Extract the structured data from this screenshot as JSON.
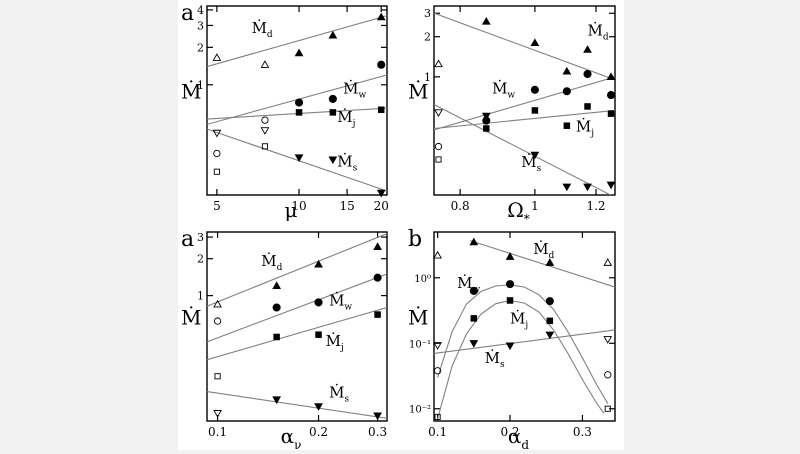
{
  "figure": {
    "background": "#f2f2f2",
    "panel_background": "#ffffff",
    "ink": "#000000",
    "fit_line_color": "#808080"
  },
  "chart_data": [
    {
      "id": "p1",
      "type": "scatter",
      "panel_letter": "a",
      "xlabel": "μ",
      "ylabel": "Ṁ",
      "xscale": "log",
      "yscale": "log",
      "xlim": [
        4.6,
        21
      ],
      "ylim": [
        0.13,
        4.3
      ],
      "xticks": [
        5,
        10,
        15,
        20
      ],
      "xticklabels": [
        "5",
        "10",
        "15",
        "20"
      ],
      "yticks": [
        1,
        2,
        3,
        4
      ],
      "yticklabels": [
        "1",
        "2",
        "3",
        "4"
      ],
      "series": [
        {
          "name": "Ṁd",
          "marker": "triangle-up",
          "points": [
            [
              5,
              1.65,
              "open"
            ],
            [
              7.5,
              1.45,
              "open"
            ],
            [
              10,
              1.8,
              "filled"
            ],
            [
              13.3,
              2.5,
              "filled"
            ],
            [
              20,
              3.5,
              "filled"
            ]
          ],
          "fit": [
            [
              4.6,
              1.4
            ],
            [
              21,
              3.6
            ]
          ]
        },
        {
          "name": "Ṁw",
          "marker": "circle",
          "points": [
            [
              5,
              0.28,
              "open"
            ],
            [
              7.5,
              0.52,
              "open"
            ],
            [
              10,
              0.72,
              "filled"
            ],
            [
              13.3,
              0.77,
              "filled"
            ],
            [
              20,
              1.45,
              "filled"
            ]
          ],
          "fit": [
            [
              4.6,
              0.48
            ],
            [
              21,
              1.2
            ]
          ]
        },
        {
          "name": "Ṁj",
          "marker": "square",
          "points": [
            [
              5,
              0.2,
              "open"
            ],
            [
              7.5,
              0.32,
              "open"
            ],
            [
              10,
              0.6,
              "filled"
            ],
            [
              13.3,
              0.6,
              "filled"
            ],
            [
              20,
              0.63,
              "filled"
            ]
          ],
          "fit": [
            [
              4.6,
              0.53
            ],
            [
              21,
              0.65
            ]
          ]
        },
        {
          "name": "Ṁs",
          "marker": "triangle-down",
          "points": [
            [
              5,
              0.41,
              "open"
            ],
            [
              7.5,
              0.43,
              "open"
            ],
            [
              10,
              0.26,
              "filled"
            ],
            [
              13.3,
              0.25,
              "filled"
            ],
            [
              20,
              0.135,
              "filled"
            ]
          ],
          "fit": [
            [
              4.6,
              0.44
            ],
            [
              21,
              0.14
            ]
          ]
        }
      ],
      "labels": [
        {
          "series": "Ṁd",
          "at": [
            6.7,
            2.6
          ]
        },
        {
          "series": "Ṁw",
          "at": [
            14.5,
            0.85
          ]
        },
        {
          "series": "Ṁj",
          "at": [
            13.8,
            0.5
          ]
        },
        {
          "series": "Ṁs",
          "at": [
            13.8,
            0.22
          ]
        }
      ]
    },
    {
      "id": "p2",
      "type": "scatter",
      "panel_letter": "",
      "xlabel": "Ω*",
      "ylabel": "Ṁ",
      "xscale": "log",
      "yscale": "log",
      "xlim": [
        0.74,
        1.27
      ],
      "ylim": [
        0.13,
        3.4
      ],
      "xticks": [
        0.8,
        1,
        1.2
      ],
      "xticklabels": [
        "0.8",
        "1",
        "1.2"
      ],
      "yticks": [
        1,
        2,
        3
      ],
      "yticklabels": [
        "1",
        "2",
        "3"
      ],
      "series": [
        {
          "name": "Ṁd",
          "marker": "triangle-up",
          "points": [
            [
              0.75,
              1.25,
              "open"
            ],
            [
              0.865,
              2.6,
              "filled"
            ],
            [
              1.0,
              1.8,
              "filled"
            ],
            [
              1.1,
              1.1,
              "filled"
            ],
            [
              1.17,
              1.6,
              "filled"
            ],
            [
              1.255,
              1.0,
              "filled"
            ]
          ],
          "fit": [
            [
              0.74,
              3.0
            ],
            [
              1.27,
              0.95
            ]
          ]
        },
        {
          "name": "Ṁw",
          "marker": "circle",
          "points": [
            [
              0.75,
              0.3,
              "open"
            ],
            [
              0.865,
              0.47,
              "filled"
            ],
            [
              1.0,
              0.8,
              "filled"
            ],
            [
              1.1,
              0.78,
              "filled"
            ],
            [
              1.17,
              1.05,
              "filled"
            ],
            [
              1.255,
              0.73,
              "filled"
            ]
          ],
          "fit": [
            [
              0.74,
              0.4
            ],
            [
              1.27,
              1.0
            ]
          ]
        },
        {
          "name": "Ṁj",
          "marker": "square",
          "points": [
            [
              0.75,
              0.24,
              "open"
            ],
            [
              0.865,
              0.41,
              "filled"
            ],
            [
              1.0,
              0.56,
              "filled"
            ],
            [
              1.1,
              0.43,
              "filled"
            ],
            [
              1.17,
              0.6,
              "filled"
            ],
            [
              1.255,
              0.53,
              "filled"
            ]
          ],
          "fit": [
            [
              0.74,
              0.41
            ],
            [
              1.27,
              0.56
            ]
          ]
        },
        {
          "name": "Ṁs",
          "marker": "triangle-down",
          "points": [
            [
              0.75,
              0.54,
              "open"
            ],
            [
              0.865,
              0.51,
              "filled"
            ],
            [
              1.0,
              0.26,
              "filled"
            ],
            [
              1.1,
              0.15,
              "filled"
            ],
            [
              1.17,
              0.15,
              "filled"
            ],
            [
              1.255,
              0.155,
              "filled"
            ]
          ],
          "fit": [
            [
              0.74,
              0.62
            ],
            [
              1.27,
              0.125
            ]
          ]
        }
      ],
      "labels": [
        {
          "series": "Ṁd",
          "at": [
            1.17,
            2.05
          ]
        },
        {
          "series": "Ṁw",
          "at": [
            0.88,
            0.75
          ]
        },
        {
          "series": "Ṁj",
          "at": [
            1.13,
            0.39
          ]
        },
        {
          "series": "Ṁs",
          "at": [
            0.96,
            0.21
          ]
        }
      ]
    },
    {
      "id": "p3",
      "type": "scatter",
      "panel_letter": "a",
      "xlabel": "αν",
      "ylabel": "Ṁ",
      "xscale": "log",
      "yscale": "log",
      "xlim": [
        0.093,
        0.32
      ],
      "ylim": [
        0.095,
        3.3
      ],
      "xticks": [
        0.1,
        0.2,
        0.3
      ],
      "xticklabels": [
        "0.1",
        "0.2",
        "0.3"
      ],
      "yticks": [
        1,
        2,
        3
      ],
      "yticklabels": [
        "1",
        "2",
        "3"
      ],
      "series": [
        {
          "name": "Ṁd",
          "marker": "triangle-up",
          "points": [
            [
              0.1,
              0.85,
              "open"
            ],
            [
              0.15,
              1.2,
              "filled"
            ],
            [
              0.2,
              1.8,
              "filled"
            ],
            [
              0.3,
              2.5,
              "filled"
            ]
          ],
          "fit": [
            [
              0.093,
              0.82
            ],
            [
              0.32,
              3.2
            ]
          ]
        },
        {
          "name": "Ṁw",
          "marker": "circle",
          "points": [
            [
              0.1,
              0.62,
              "open"
            ],
            [
              0.15,
              0.8,
              "filled"
            ],
            [
              0.2,
              0.88,
              "filled"
            ],
            [
              0.3,
              1.4,
              "filled"
            ]
          ],
          "fit": [
            [
              0.093,
              0.42
            ],
            [
              0.32,
              1.5
            ]
          ]
        },
        {
          "name": "Ṁj",
          "marker": "square",
          "points": [
            [
              0.1,
              0.22,
              "open"
            ],
            [
              0.15,
              0.46,
              "filled"
            ],
            [
              0.2,
              0.48,
              "filled"
            ],
            [
              0.3,
              0.7,
              "filled"
            ]
          ],
          "fit": [
            [
              0.093,
              0.3
            ],
            [
              0.32,
              0.8
            ]
          ]
        },
        {
          "name": "Ṁs",
          "marker": "triangle-down",
          "points": [
            [
              0.1,
              0.11,
              "open"
            ],
            [
              0.15,
              0.142,
              "filled"
            ],
            [
              0.2,
              0.125,
              "filled"
            ],
            [
              0.3,
              0.105,
              "filled"
            ]
          ],
          "fit": [
            [
              0.093,
              0.165
            ],
            [
              0.32,
              0.1
            ]
          ]
        }
      ],
      "labels": [
        {
          "series": "Ṁd",
          "at": [
            0.135,
            1.75
          ]
        },
        {
          "series": "Ṁw",
          "at": [
            0.215,
            0.83
          ]
        },
        {
          "series": "Ṁj",
          "at": [
            0.21,
            0.39
          ]
        },
        {
          "series": "Ṁs",
          "at": [
            0.215,
            0.147
          ]
        }
      ]
    },
    {
      "id": "p4",
      "type": "scatter",
      "panel_letter": "b",
      "xlabel": "αd",
      "ylabel": "Ṁ",
      "xscale": "linear",
      "yscale": "log",
      "xlim": [
        0.095,
        0.345
      ],
      "ylim": [
        0.0065,
        5
      ],
      "xticks": [
        0.1,
        0.2,
        0.3
      ],
      "xticklabels": [
        "0.1",
        "0.2",
        "0.3"
      ],
      "yticks": [
        0.01,
        0.1,
        1
      ],
      "yticklabels": [
        "10⁻²",
        "10⁻¹",
        "10⁰"
      ],
      "series": [
        {
          "name": "Ṁd",
          "marker": "triangle-up",
          "points": [
            [
              0.1,
              2.2,
              "open"
            ],
            [
              0.15,
              3.5,
              "filled"
            ],
            [
              0.2,
              2.1,
              "filled"
            ],
            [
              0.255,
              1.7,
              "filled"
            ],
            [
              0.335,
              1.7,
              "open"
            ]
          ],
          "fit": [
            [
              0.145,
              3.7
            ],
            [
              0.345,
              0.72
            ]
          ]
        },
        {
          "name": "Ṁw",
          "marker": "circle",
          "points": [
            [
              0.1,
              0.038,
              "open"
            ],
            [
              0.15,
              0.63,
              "filled"
            ],
            [
              0.2,
              0.8,
              "filled"
            ],
            [
              0.255,
              0.44,
              "filled"
            ],
            [
              0.335,
              0.033,
              "open"
            ]
          ],
          "fit": [
            [
              0.1,
              0.03
            ],
            [
              0.12,
              0.15
            ],
            [
              0.14,
              0.4
            ],
            [
              0.16,
              0.62
            ],
            [
              0.18,
              0.75
            ],
            [
              0.2,
              0.78
            ],
            [
              0.22,
              0.72
            ],
            [
              0.24,
              0.55
            ],
            [
              0.26,
              0.33
            ],
            [
              0.28,
              0.15
            ],
            [
              0.3,
              0.06
            ],
            [
              0.32,
              0.023
            ],
            [
              0.335,
              0.012
            ]
          ]
        },
        {
          "name": "Ṁj",
          "marker": "square",
          "points": [
            [
              0.1,
              0.0075,
              "open"
            ],
            [
              0.15,
              0.24,
              "filled"
            ],
            [
              0.2,
              0.45,
              "filled"
            ],
            [
              0.255,
              0.22,
              "filled"
            ],
            [
              0.335,
              0.01,
              "open"
            ]
          ],
          "fit": [
            [
              0.1,
              0.007
            ],
            [
              0.12,
              0.045
            ],
            [
              0.14,
              0.14
            ],
            [
              0.16,
              0.28
            ],
            [
              0.18,
              0.4
            ],
            [
              0.2,
              0.45
            ],
            [
              0.22,
              0.41
            ],
            [
              0.24,
              0.3
            ],
            [
              0.26,
              0.16
            ],
            [
              0.28,
              0.07
            ],
            [
              0.3,
              0.028
            ],
            [
              0.32,
              0.012
            ],
            [
              0.33,
              0.0085
            ]
          ]
        },
        {
          "name": "Ṁs",
          "marker": "triangle-down",
          "points": [
            [
              0.1,
              0.093,
              "open"
            ],
            [
              0.15,
              0.1,
              "filled"
            ],
            [
              0.2,
              0.092,
              "filled"
            ],
            [
              0.255,
              0.135,
              "filled"
            ],
            [
              0.335,
              0.115,
              "open"
            ]
          ],
          "fit": [
            [
              0.095,
              0.07
            ],
            [
              0.345,
              0.16
            ]
          ]
        }
      ],
      "labels": [
        {
          "series": "Ṁd",
          "at": [
            0.232,
            2.3
          ]
        },
        {
          "series": "Ṁw",
          "at": [
            0.127,
            0.7
          ]
        },
        {
          "series": "Ṁj",
          "at": [
            0.2,
            0.2
          ]
        },
        {
          "series": "Ṁs",
          "at": [
            0.165,
            0.05
          ]
        }
      ]
    }
  ]
}
